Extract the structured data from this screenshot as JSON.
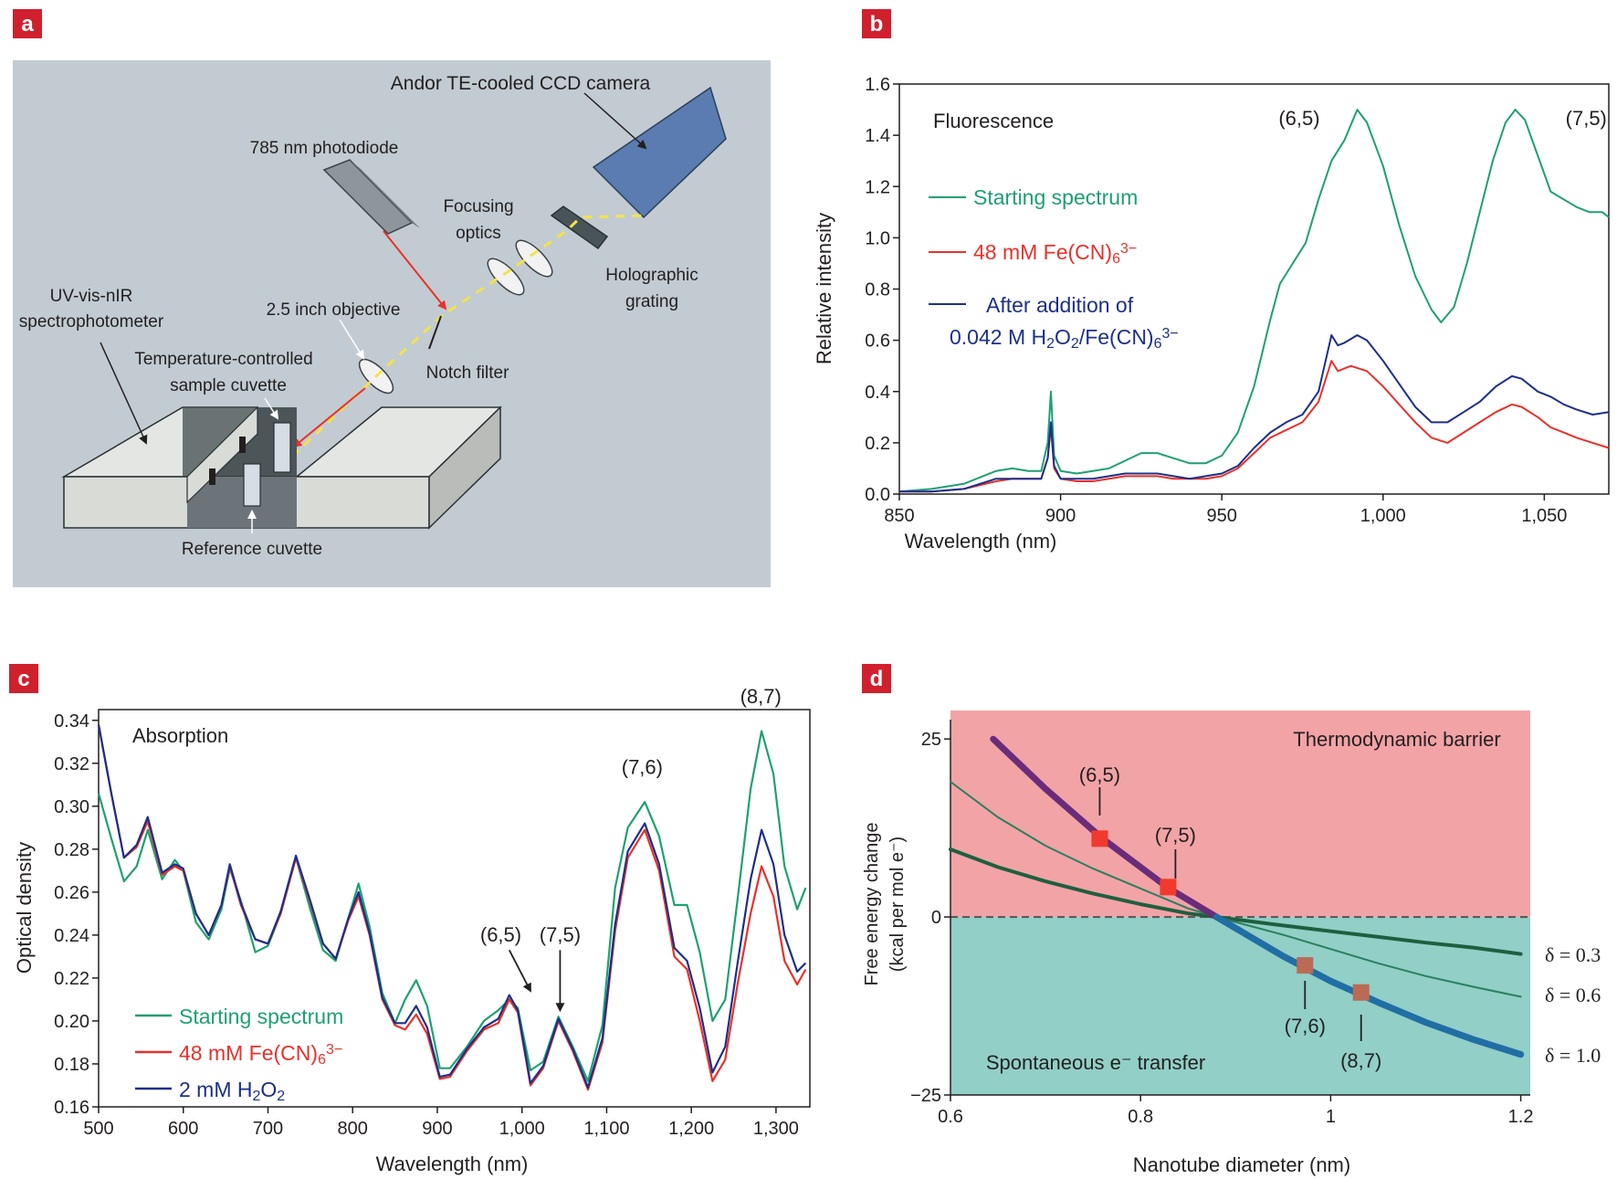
{
  "panels": {
    "a": {
      "badge": "a",
      "labels": {
        "camera": "Andor TE-cooled CCD camera",
        "photodiode": "785 nm photodiode",
        "focusing_1": "Focusing",
        "focusing_2": "optics",
        "grating_1": "Holographic",
        "grating_2": "grating",
        "spectro_1": "UV-vis-nIR",
        "spectro_2": "spectrophotometer",
        "objective": "2.5 inch objective",
        "temp_1": "Temperature-controlled",
        "temp_2": "sample cuvette",
        "notch": "Notch filter",
        "reference": "Reference cuvette"
      },
      "colors": {
        "background": "#c2cbd2",
        "camera": "#5a7cb0",
        "laser": "#e8312a",
        "beam": "#f2e34a"
      }
    },
    "b": {
      "badge": "b"
    },
    "c": {
      "badge": "c"
    },
    "d": {
      "badge": "d"
    }
  },
  "chart_data": [
    {
      "panel": "b",
      "type": "line",
      "annotation": "Fluorescence",
      "xlabel": "Wavelength (nm)",
      "ylabel": "Relative intensity",
      "xlim": [
        850,
        1070
      ],
      "ylim": [
        0,
        1.6
      ],
      "xticks": [
        850,
        900,
        950,
        1000,
        1050
      ],
      "xtick_labels": [
        "850",
        "900",
        "950",
        "1,000",
        "1,050"
      ],
      "yticks": [
        0,
        0.2,
        0.4,
        0.6,
        0.8,
        1.0,
        1.2,
        1.4,
        1.6
      ],
      "ytick_labels": [
        "0.0",
        "0.2",
        "0.4",
        "0.6",
        "0.8",
        "1.0",
        "1.2",
        "1.4",
        "1.6"
      ],
      "peak_labels": [
        {
          "text": "(6,5)",
          "x": 974,
          "y": 1.44
        },
        {
          "text": "(7,5)",
          "x": 1063,
          "y": 1.44
        }
      ],
      "legend": [
        {
          "prefix": "Starting spectrum",
          "sub": "",
          "mid": "",
          "sup": "",
          "line2": "",
          "line2_parts": []
        },
        {
          "prefix": "48 mM Fe(CN)",
          "sub": "6",
          "sup": "3−",
          "line2": "",
          "line2_parts": []
        },
        {
          "prefix": "After addition of",
          "sub": "",
          "sup": "",
          "line2_parts": [
            {
              "t": "0.042 M H",
              "k": "n"
            },
            {
              "t": "2",
              "k": "sub"
            },
            {
              "t": "O",
              "k": "n"
            },
            {
              "t": "2",
              "k": "sub"
            },
            {
              "t": "/Fe(CN)",
              "k": "n"
            },
            {
              "t": "6",
              "k": "sub"
            },
            {
              "t": "3−",
              "k": "sup"
            }
          ]
        }
      ],
      "series": [
        {
          "color": "#1ea071",
          "x": [
            850,
            860,
            870,
            880,
            885,
            890,
            894,
            896,
            897,
            898,
            900,
            905,
            910,
            915,
            920,
            925,
            930,
            935,
            940,
            945,
            950,
            955,
            960,
            965,
            968,
            972,
            976,
            980,
            984,
            988,
            992,
            995,
            1000,
            1005,
            1010,
            1015,
            1018,
            1022,
            1026,
            1030,
            1034,
            1038,
            1041,
            1044,
            1048,
            1052,
            1056,
            1060,
            1064,
            1068,
            1070
          ],
          "y": [
            0.01,
            0.02,
            0.04,
            0.09,
            0.1,
            0.09,
            0.09,
            0.2,
            0.4,
            0.15,
            0.09,
            0.08,
            0.09,
            0.1,
            0.13,
            0.16,
            0.16,
            0.14,
            0.12,
            0.12,
            0.15,
            0.24,
            0.42,
            0.68,
            0.82,
            0.9,
            0.98,
            1.15,
            1.3,
            1.38,
            1.5,
            1.45,
            1.28,
            1.05,
            0.85,
            0.72,
            0.67,
            0.73,
            0.9,
            1.1,
            1.3,
            1.45,
            1.5,
            1.46,
            1.32,
            1.18,
            1.15,
            1.12,
            1.1,
            1.1,
            1.08
          ]
        },
        {
          "color": "#e8312a",
          "x": [
            850,
            860,
            870,
            880,
            885,
            890,
            894,
            896,
            897,
            898,
            900,
            905,
            910,
            915,
            920,
            925,
            930,
            935,
            940,
            945,
            950,
            955,
            960,
            965,
            970,
            975,
            980,
            984,
            986,
            990,
            995,
            1000,
            1005,
            1010,
            1015,
            1020,
            1025,
            1030,
            1035,
            1040,
            1043,
            1048,
            1052,
            1056,
            1060,
            1065,
            1070
          ],
          "y": [
            0.01,
            0.01,
            0.02,
            0.05,
            0.06,
            0.06,
            0.06,
            0.14,
            0.26,
            0.1,
            0.06,
            0.05,
            0.05,
            0.06,
            0.07,
            0.07,
            0.07,
            0.06,
            0.06,
            0.06,
            0.07,
            0.1,
            0.16,
            0.22,
            0.25,
            0.28,
            0.36,
            0.52,
            0.48,
            0.5,
            0.48,
            0.42,
            0.35,
            0.28,
            0.22,
            0.2,
            0.24,
            0.28,
            0.32,
            0.35,
            0.34,
            0.3,
            0.26,
            0.24,
            0.22,
            0.2,
            0.18
          ]
        },
        {
          "color": "#1c2f8a",
          "x": [
            850,
            860,
            870,
            880,
            885,
            890,
            894,
            896,
            897,
            898,
            900,
            905,
            910,
            915,
            920,
            925,
            930,
            935,
            940,
            945,
            950,
            955,
            960,
            965,
            970,
            975,
            980,
            984,
            986,
            988,
            992,
            995,
            1000,
            1005,
            1010,
            1015,
            1020,
            1025,
            1030,
            1035,
            1040,
            1043,
            1048,
            1052,
            1056,
            1060,
            1065,
            1070
          ],
          "y": [
            0.01,
            0.01,
            0.02,
            0.06,
            0.06,
            0.06,
            0.06,
            0.14,
            0.28,
            0.11,
            0.06,
            0.06,
            0.06,
            0.07,
            0.08,
            0.08,
            0.08,
            0.07,
            0.06,
            0.07,
            0.08,
            0.11,
            0.18,
            0.24,
            0.28,
            0.31,
            0.4,
            0.62,
            0.58,
            0.59,
            0.62,
            0.6,
            0.52,
            0.43,
            0.34,
            0.28,
            0.28,
            0.32,
            0.36,
            0.42,
            0.46,
            0.45,
            0.4,
            0.38,
            0.35,
            0.33,
            0.31,
            0.32
          ]
        }
      ]
    },
    {
      "panel": "c",
      "type": "line",
      "annotation": "Absorption",
      "xlabel": "Wavelength (nm)",
      "ylabel": "Optical density",
      "xlim": [
        500,
        1340
      ],
      "ylim": [
        0.16,
        0.345
      ],
      "xticks": [
        500,
        600,
        700,
        800,
        900,
        1000,
        1100,
        1200,
        1300
      ],
      "xtick_labels": [
        "500",
        "600",
        "700",
        "800",
        "900",
        "1,000",
        "1,100",
        "1,200",
        "1,300"
      ],
      "yticks": [
        0.16,
        0.18,
        0.2,
        0.22,
        0.24,
        0.26,
        0.28,
        0.3,
        0.32,
        0.34
      ],
      "ytick_labels": [
        "0.16",
        "0.18",
        "0.20",
        "0.22",
        "0.24",
        "0.26",
        "0.28",
        "0.30",
        "0.32",
        "0.34"
      ],
      "peak_labels": [
        {
          "text": "(6,5)",
          "x": 975,
          "y": 0.237
        },
        {
          "text": "(7,5)",
          "x": 1045,
          "y": 0.237
        },
        {
          "text": "(7,6)",
          "x": 1142,
          "y": 0.315
        },
        {
          "text": "(8,7)",
          "x": 1282,
          "y": 0.348
        }
      ],
      "legend": [
        {
          "prefix": "Starting spectrum",
          "sub": "",
          "sup": ""
        },
        {
          "prefix": "48 mM Fe(CN)",
          "sub": "6",
          "sup": "3−"
        },
        {
          "prefix": "2 mM H",
          "sub": "2",
          "mid": "O",
          "sub2": "2",
          "sup": ""
        }
      ],
      "series": [
        {
          "color": "#1ea071",
          "x": [
            500,
            515,
            530,
            545,
            558,
            575,
            590,
            600,
            615,
            630,
            645,
            655,
            668,
            685,
            700,
            715,
            733,
            750,
            765,
            780,
            795,
            807,
            820,
            835,
            850,
            862,
            875,
            888,
            903,
            915,
            935,
            955,
            972,
            985,
            995,
            1010,
            1025,
            1043,
            1060,
            1078,
            1095,
            1110,
            1125,
            1145,
            1162,
            1180,
            1195,
            1210,
            1225,
            1240,
            1255,
            1270,
            1283,
            1297,
            1310,
            1325,
            1335
          ],
          "y": [
            0.306,
            0.285,
            0.265,
            0.272,
            0.289,
            0.266,
            0.275,
            0.27,
            0.246,
            0.238,
            0.252,
            0.271,
            0.256,
            0.232,
            0.235,
            0.25,
            0.276,
            0.252,
            0.233,
            0.228,
            0.248,
            0.264,
            0.244,
            0.213,
            0.199,
            0.21,
            0.219,
            0.207,
            0.178,
            0.178,
            0.188,
            0.2,
            0.205,
            0.21,
            0.206,
            0.177,
            0.181,
            0.202,
            0.188,
            0.172,
            0.198,
            0.262,
            0.29,
            0.302,
            0.286,
            0.254,
            0.254,
            0.232,
            0.2,
            0.21,
            0.258,
            0.308,
            0.335,
            0.315,
            0.272,
            0.252,
            0.262
          ]
        },
        {
          "color": "#e8312a",
          "x": [
            500,
            515,
            530,
            545,
            558,
            575,
            590,
            600,
            615,
            630,
            645,
            655,
            668,
            685,
            700,
            715,
            733,
            750,
            765,
            780,
            795,
            807,
            820,
            835,
            850,
            862,
            875,
            888,
            903,
            915,
            935,
            955,
            972,
            985,
            995,
            1010,
            1025,
            1043,
            1060,
            1078,
            1095,
            1110,
            1125,
            1145,
            1162,
            1180,
            1195,
            1210,
            1225,
            1240,
            1255,
            1270,
            1283,
            1297,
            1310,
            1325,
            1335
          ],
          "y": [
            0.338,
            0.306,
            0.276,
            0.281,
            0.293,
            0.268,
            0.272,
            0.27,
            0.25,
            0.24,
            0.254,
            0.272,
            0.254,
            0.238,
            0.236,
            0.25,
            0.276,
            0.255,
            0.236,
            0.229,
            0.247,
            0.258,
            0.24,
            0.21,
            0.198,
            0.196,
            0.203,
            0.194,
            0.173,
            0.174,
            0.186,
            0.196,
            0.199,
            0.21,
            0.204,
            0.17,
            0.178,
            0.2,
            0.186,
            0.168,
            0.19,
            0.242,
            0.276,
            0.289,
            0.27,
            0.23,
            0.224,
            0.2,
            0.172,
            0.182,
            0.218,
            0.25,
            0.272,
            0.258,
            0.228,
            0.217,
            0.224
          ]
        },
        {
          "color": "#1c2f8a",
          "x": [
            500,
            515,
            530,
            545,
            558,
            575,
            590,
            600,
            615,
            630,
            645,
            655,
            668,
            685,
            700,
            715,
            733,
            750,
            765,
            780,
            795,
            807,
            820,
            835,
            850,
            862,
            875,
            888,
            903,
            915,
            935,
            955,
            972,
            985,
            995,
            1010,
            1025,
            1043,
            1060,
            1078,
            1095,
            1110,
            1125,
            1145,
            1162,
            1180,
            1195,
            1210,
            1225,
            1240,
            1255,
            1270,
            1283,
            1297,
            1310,
            1325,
            1335
          ],
          "y": [
            0.338,
            0.306,
            0.276,
            0.282,
            0.295,
            0.269,
            0.273,
            0.271,
            0.25,
            0.24,
            0.254,
            0.273,
            0.255,
            0.238,
            0.236,
            0.251,
            0.277,
            0.256,
            0.236,
            0.229,
            0.248,
            0.26,
            0.241,
            0.211,
            0.199,
            0.199,
            0.207,
            0.197,
            0.174,
            0.175,
            0.187,
            0.197,
            0.201,
            0.212,
            0.205,
            0.171,
            0.179,
            0.201,
            0.187,
            0.169,
            0.192,
            0.245,
            0.279,
            0.292,
            0.273,
            0.234,
            0.228,
            0.206,
            0.176,
            0.188,
            0.228,
            0.266,
            0.289,
            0.273,
            0.24,
            0.223,
            0.227
          ]
        }
      ]
    },
    {
      "panel": "d",
      "type": "line",
      "xlabel": "Nanotube diameter (nm)",
      "ylabel_1": "Free energy change",
      "ylabel_2": "(kcal per mol e⁻)",
      "xlim": [
        0.6,
        1.21
      ],
      "ylim": [
        -25,
        29
      ],
      "xticks": [
        0.6,
        0.8,
        1.0,
        1.2
      ],
      "xtick_labels": [
        "0.6",
        "0.8",
        "1",
        "1.2"
      ],
      "yticks": [
        -25,
        0,
        25
      ],
      "ytick_labels": [
        "−25",
        "0",
        "25"
      ],
      "region_top_label": "Thermodynamic barrier",
      "region_bottom_label": "Spontaneous e⁻ transfer",
      "region_colors": {
        "top": "#f2a3a6",
        "bottom": "#91cfc7"
      },
      "curves": [
        {
          "label": "δ = 0.3",
          "color": "#1e5f3f",
          "width": 4,
          "x": [
            0.6,
            0.65,
            0.7,
            0.75,
            0.8,
            0.85,
            0.88,
            0.95,
            1.0,
            1.05,
            1.1,
            1.15,
            1.2
          ],
          "y": [
            9.5,
            7.0,
            5.0,
            3.3,
            1.8,
            0.5,
            0.0,
            -1.2,
            -2.0,
            -2.8,
            -3.6,
            -4.3,
            -5.2
          ]
        },
        {
          "label": "δ = 0.6",
          "color": "#2a7f5f",
          "width": 2,
          "x": [
            0.6,
            0.65,
            0.7,
            0.75,
            0.8,
            0.85,
            0.88,
            0.95,
            1.0,
            1.05,
            1.1,
            1.15,
            1.2
          ],
          "y": [
            19.0,
            14.0,
            10.0,
            6.8,
            4.0,
            1.2,
            0.0,
            -2.5,
            -4.5,
            -6.5,
            -8.3,
            -9.8,
            -11.2
          ]
        },
        {
          "label": "δ = 1.0",
          "color": "#6a2c7a",
          "width": 7,
          "x": [
            0.645,
            0.7,
            0.76,
            0.83,
            0.88,
            0.95,
            1.0,
            1.05,
            1.1,
            1.15,
            1.2
          ],
          "y": [
            25.0,
            18.0,
            11.0,
            4.0,
            0.0,
            -5.5,
            -9.0,
            -12.0,
            -14.8,
            -17.2,
            -19.3
          ]
        }
      ],
      "points": [
        {
          "label": "(6,5)",
          "x": 0.757,
          "y": 11.0,
          "color": "#f03a2e"
        },
        {
          "label": "(7,5)",
          "x": 0.829,
          "y": 4.2,
          "color": "#f03a2e"
        },
        {
          "label": "(7,6)",
          "x": 0.973,
          "y": -6.8,
          "color": "#bb6a55"
        },
        {
          "label": "(8,7)",
          "x": 1.032,
          "y": -10.6,
          "color": "#bb6a55"
        }
      ]
    }
  ]
}
